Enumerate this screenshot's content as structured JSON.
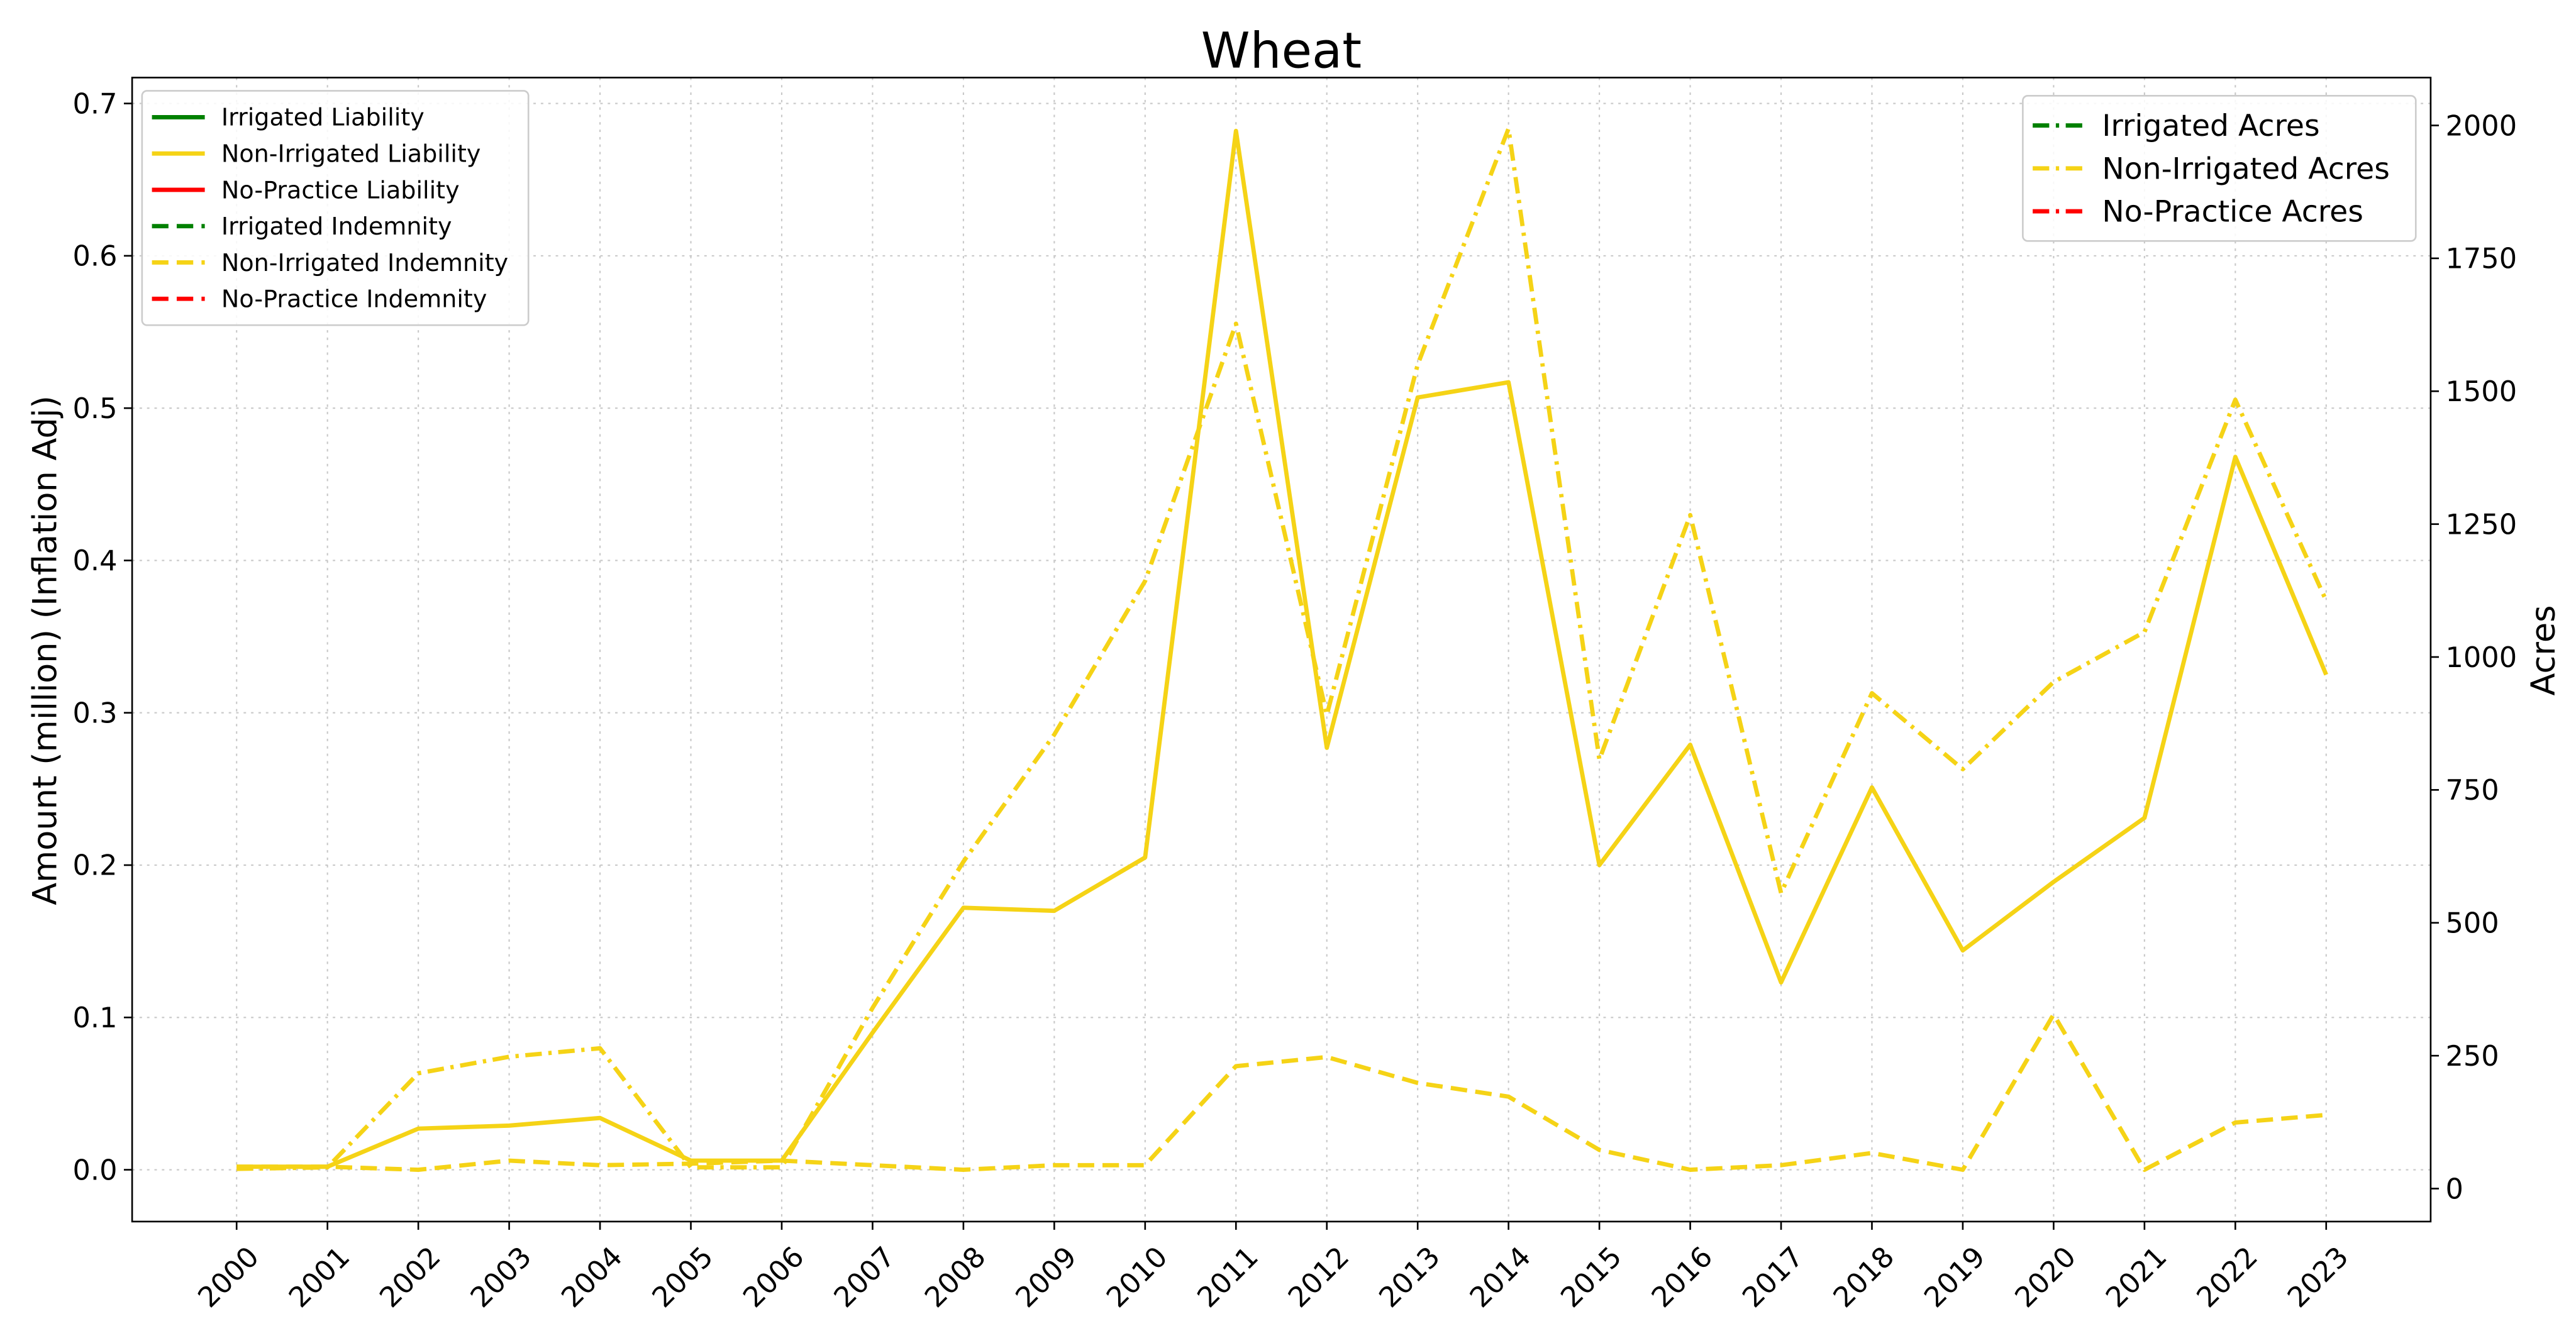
{
  "chart_data": {
    "type": "line",
    "title": "Wheat",
    "y_label": "Amount (million) (Inflation Adj)",
    "y2_label": "Acres",
    "categories": [
      "2000",
      "2001",
      "2002",
      "2003",
      "2004",
      "2005",
      "2006",
      "2007",
      "2008",
      "2009",
      "2010",
      "2011",
      "2012",
      "2013",
      "2014",
      "2015",
      "2016",
      "2017",
      "2018",
      "2019",
      "2020",
      "2021",
      "2022",
      "2023"
    ],
    "series": [
      {
        "name": "Irrigated Liability",
        "color": "#008000",
        "dash": "solid",
        "values": [
          null,
          null,
          null,
          null,
          null,
          null,
          null,
          null,
          null,
          null,
          null,
          null,
          null,
          null,
          null,
          null,
          null,
          null,
          null,
          null,
          null,
          null,
          null,
          null
        ]
      },
      {
        "name": "Non-Irrigated Liability",
        "color": "#f5d316",
        "dash": "solid",
        "values": [
          0.002,
          0.002,
          0.027,
          0.029,
          0.034,
          0.006,
          0.006,
          0.09,
          0.172,
          0.17,
          0.205,
          0.682,
          0.277,
          0.507,
          0.517,
          0.2,
          0.279,
          0.123,
          0.251,
          0.144,
          0.189,
          0.231,
          0.468,
          0.325
        ]
      },
      {
        "name": "No-Practice Liability",
        "color": "#ff0000",
        "dash": "solid",
        "values": [
          null,
          null,
          null,
          null,
          null,
          null,
          null,
          null,
          null,
          null,
          null,
          null,
          null,
          null,
          null,
          null,
          null,
          null,
          null,
          null,
          null,
          null,
          null,
          null
        ]
      },
      {
        "name": "Irrigated Indemnity",
        "color": "#008000",
        "dash": "dashed",
        "values": [
          null,
          null,
          null,
          null,
          null,
          null,
          null,
          null,
          null,
          null,
          null,
          null,
          null,
          null,
          null,
          null,
          null,
          null,
          null,
          null,
          null,
          null,
          null,
          null
        ]
      },
      {
        "name": "Non-Irrigated Indemnity",
        "color": "#f5d316",
        "dash": "dashed",
        "values": [
          0.002,
          0.002,
          0.0,
          0.006,
          0.003,
          0.004,
          0.006,
          0.003,
          0.0,
          0.003,
          0.003,
          0.068,
          0.074,
          0.057,
          0.048,
          0.013,
          0.0,
          0.003,
          0.011,
          0.0,
          0.102,
          0.0,
          0.031,
          0.036
        ]
      },
      {
        "name": "No-Practice Indemnity",
        "color": "#ff0000",
        "dash": "dashed",
        "values": [
          null,
          null,
          null,
          null,
          null,
          null,
          null,
          null,
          null,
          null,
          null,
          null,
          null,
          null,
          null,
          null,
          null,
          null,
          null,
          null,
          null,
          null,
          null,
          null
        ]
      },
      {
        "name": "Irrigated Acres",
        "color": "#008000",
        "dash": "dashdot",
        "axis": "y2",
        "values": [
          null,
          null,
          null,
          null,
          null,
          null,
          null,
          null,
          null,
          null,
          null,
          null,
          null,
          null,
          null,
          null,
          null,
          null,
          null,
          null,
          null,
          null,
          null,
          null
        ]
      },
      {
        "name": "Non-Irrigated Acres",
        "color": "#f5d316",
        "dash": "dashdot",
        "axis": "y2",
        "values": [
          37,
          40,
          217,
          248,
          264,
          40,
          40,
          340,
          615,
          854,
          1143,
          1627,
          891,
          1550,
          1994,
          807,
          1267,
          556,
          932,
          789,
          953,
          1047,
          1484,
          1106
        ]
      },
      {
        "name": "No-Practice Acres",
        "color": "#ff0000",
        "dash": "dashdot",
        "axis": "y2",
        "values": [
          null,
          null,
          null,
          null,
          null,
          null,
          null,
          null,
          null,
          null,
          null,
          null,
          null,
          null,
          null,
          null,
          null,
          null,
          null,
          null,
          null,
          null,
          null,
          null
        ]
      }
    ],
    "ylim": [
      -0.034,
      0.717
    ],
    "yticks": [
      {
        "value": 0,
        "label": "0.0"
      },
      0.1,
      0.2,
      0.3,
      0.4,
      0.5,
      0.6,
      0.7
    ],
    "y2lim": [
      -62,
      2090
    ],
    "y2ticks": [
      0,
      250,
      500,
      750,
      1000,
      1250,
      1500,
      1750,
      2000
    ],
    "grid": true,
    "legend": "upper left",
    "legend2": "upper right"
  }
}
